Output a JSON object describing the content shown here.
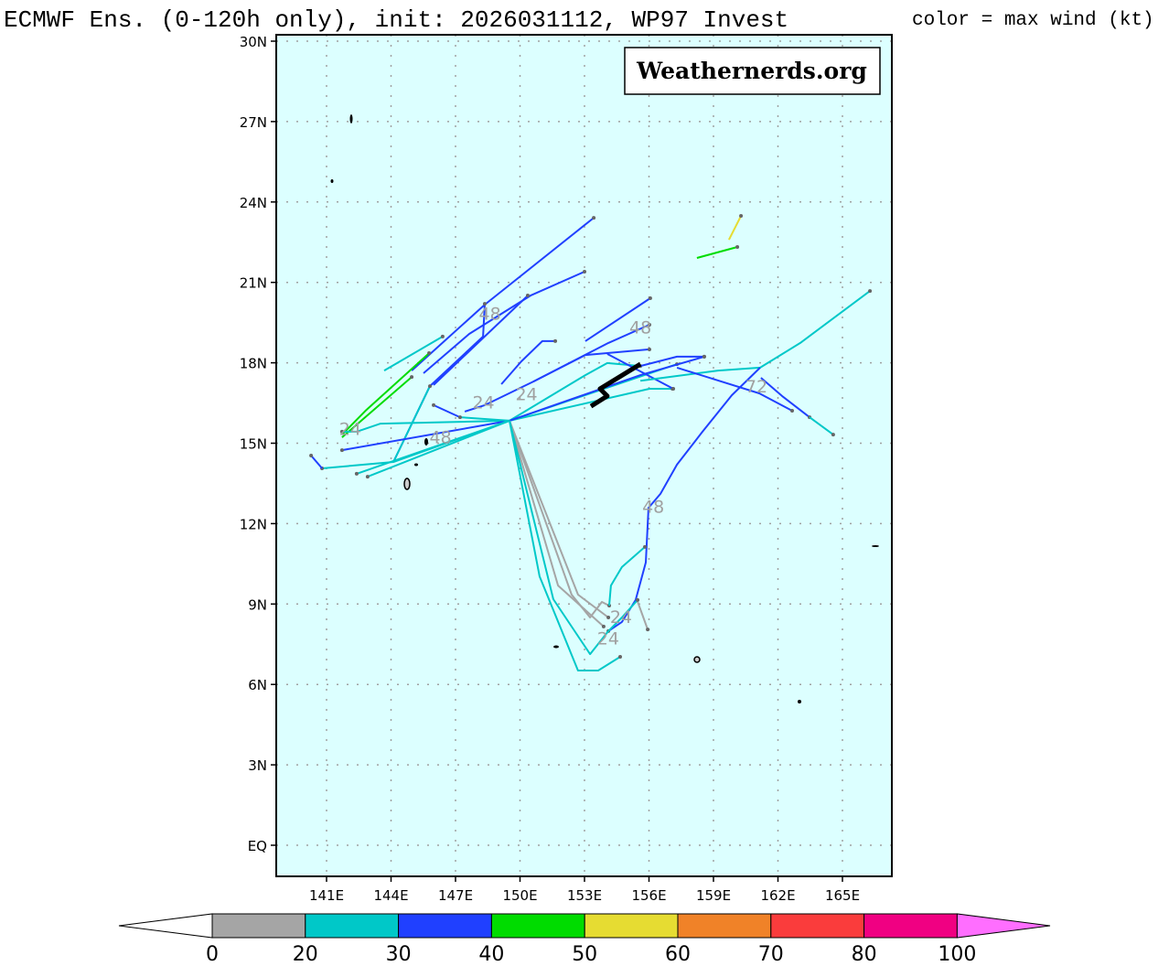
{
  "header": {
    "title": "ECMWF Ens. (0-120h only), init: 2026031112, WP97 Invest",
    "legend_note": "color = max wind (kt)"
  },
  "watermark": "Weathernerds.org",
  "colors": {
    "ocean": "#dcffff",
    "grid": "#a0a0a0"
  },
  "chart_data": {
    "type": "map-tracks",
    "lon_range": [
      139.2,
      167.8
    ],
    "lat_range": [
      -1.2,
      30.2
    ],
    "lon_ticks": [
      {
        "v": 141,
        "label": "141E"
      },
      {
        "v": 144,
        "label": "144E"
      },
      {
        "v": 147,
        "label": "147E"
      },
      {
        "v": 150,
        "label": "150E"
      },
      {
        "v": 153,
        "label": "153E"
      },
      {
        "v": 156,
        "label": "156E"
      },
      {
        "v": 159,
        "label": "159E"
      },
      {
        "v": 162,
        "label": "162E"
      },
      {
        "v": 165,
        "label": "165E"
      }
    ],
    "lat_ticks": [
      {
        "v": 30,
        "label": "30N"
      },
      {
        "v": 27,
        "label": "27N"
      },
      {
        "v": 24,
        "label": "24N"
      },
      {
        "v": 21,
        "label": "21N"
      },
      {
        "v": 18,
        "label": "18N"
      },
      {
        "v": 15,
        "label": "15N"
      },
      {
        "v": 12,
        "label": "12N"
      },
      {
        "v": 9,
        "label": "9N"
      },
      {
        "v": 6,
        "label": "6N"
      },
      {
        "v": 3,
        "label": "3N"
      },
      {
        "v": 0,
        "label": "EQ"
      }
    ],
    "colorbar": {
      "bins": [
        {
          "from": 0,
          "to": 20,
          "color": "#a5a5a5"
        },
        {
          "from": 20,
          "to": 30,
          "color": "#00c8c8"
        },
        {
          "from": 30,
          "to": 40,
          "color": "#2040ff"
        },
        {
          "from": 40,
          "to": 50,
          "color": "#00dc00"
        },
        {
          "from": 50,
          "to": 60,
          "color": "#e6dc32"
        },
        {
          "from": 60,
          "to": 70,
          "color": "#f08228"
        },
        {
          "from": 70,
          "to": 80,
          "color": "#fa3c3c"
        },
        {
          "from": 80,
          "to": 100,
          "color": "#f00082"
        }
      ],
      "over_color": "#ff6eff",
      "labels": [
        "0",
        "20",
        "30",
        "40",
        "50",
        "60",
        "70",
        "80",
        "100"
      ]
    },
    "tracks": [
      {
        "c": "blue",
        "pts": [
          [
            144.96,
            17.71
          ],
          [
            148.36,
            20.17
          ],
          [
            153.43,
            23.41
          ]
        ]
      },
      {
        "c": "blue",
        "pts": [
          [
            145.51,
            17.61
          ],
          [
            147.64,
            19.08
          ],
          [
            150.49,
            20.51
          ],
          [
            153.0,
            21.4
          ]
        ]
      },
      {
        "c": "blue",
        "pts": [
          [
            145.98,
            17.17
          ],
          [
            150.36,
            20.51
          ]
        ]
      },
      {
        "c": "blue",
        "pts": [
          [
            144.11,
            14.3
          ],
          [
            145.81,
            17.13
          ],
          [
            148.28,
            18.98
          ],
          [
            148.36,
            20.2
          ]
        ]
      },
      {
        "c": "cyan",
        "pts": [
          [
            144.11,
            14.3
          ],
          [
            145.81,
            17.13
          ]
        ]
      },
      {
        "c": "green",
        "pts": [
          [
            141.72,
            15.32
          ],
          [
            142.8,
            16.2
          ],
          [
            145.77,
            18.36
          ]
        ]
      },
      {
        "c": "green",
        "pts": [
          [
            141.72,
            15.22
          ],
          [
            144.96,
            17.47
          ]
        ]
      },
      {
        "c": "cyan",
        "pts": [
          [
            143.68,
            17.71
          ],
          [
            146.4,
            18.98
          ]
        ]
      },
      {
        "c": "cyan",
        "pts": [
          [
            149.51,
            15.84
          ],
          [
            143.51,
            15.73
          ],
          [
            142.4,
            15.43
          ],
          [
            141.72,
            15.43
          ]
        ]
      },
      {
        "c": "blue",
        "pts": [
          [
            149.51,
            15.84
          ],
          [
            141.72,
            14.74
          ]
        ]
      },
      {
        "c": "cyan",
        "pts": [
          [
            149.51,
            15.84
          ],
          [
            144.11,
            14.3
          ],
          [
            140.79,
            14.06
          ]
        ]
      },
      {
        "c": "blue",
        "pts": [
          [
            140.79,
            14.06
          ],
          [
            140.28,
            14.54
          ]
        ]
      },
      {
        "c": "cyan",
        "pts": [
          [
            149.51,
            15.84
          ],
          [
            142.4,
            13.86
          ]
        ]
      },
      {
        "c": "cyan",
        "pts": [
          [
            149.51,
            15.84
          ],
          [
            142.91,
            13.75
          ]
        ]
      },
      {
        "c": "blue",
        "pts": [
          [
            147.21,
            15.97
          ],
          [
            145.98,
            16.42
          ]
        ]
      },
      {
        "c": "cyan",
        "pts": [
          [
            149.51,
            15.84
          ],
          [
            147.21,
            15.97
          ]
        ]
      },
      {
        "c": "blue",
        "pts": [
          [
            147.43,
            16.18
          ],
          [
            148.36,
            16.42
          ],
          [
            150.62,
            17.3
          ],
          [
            153.04,
            18.29
          ],
          [
            156.02,
            18.5
          ]
        ]
      },
      {
        "c": "blue",
        "pts": [
          [
            150.62,
            17.3
          ],
          [
            154.11,
            18.74
          ],
          [
            156.02,
            19.42
          ]
        ]
      },
      {
        "c": "blue",
        "pts": [
          [
            153.04,
            18.81
          ],
          [
            156.06,
            20.41
          ]
        ]
      },
      {
        "c": "blue",
        "pts": [
          [
            149.13,
            17.2
          ],
          [
            150.06,
            18.05
          ],
          [
            151.04,
            18.81
          ],
          [
            151.64,
            18.81
          ]
        ]
      },
      {
        "c": "cyan",
        "pts": [
          [
            149.51,
            15.84
          ],
          [
            153.04,
            17.54
          ],
          [
            154.06,
            17.99
          ],
          [
            155.6,
            17.88
          ]
        ]
      },
      {
        "c": "cyan",
        "pts": [
          [
            149.51,
            15.84
          ],
          [
            157.3,
            17.95
          ]
        ]
      },
      {
        "c": "cyan",
        "pts": [
          [
            149.51,
            15.84
          ],
          [
            156.02,
            17.03
          ],
          [
            157.09,
            17.03
          ]
        ]
      },
      {
        "c": "blue",
        "pts": [
          [
            149.51,
            15.84
          ],
          [
            155.6,
            17.54
          ],
          [
            158.57,
            18.23
          ]
        ]
      },
      {
        "c": "blue",
        "pts": [
          [
            154.06,
            18.33
          ],
          [
            157.13,
            17.03
          ]
        ]
      },
      {
        "c": "blue",
        "pts": [
          [
            155.6,
            17.88
          ],
          [
            157.3,
            18.23
          ],
          [
            158.57,
            18.23
          ]
        ]
      },
      {
        "c": "green",
        "pts": [
          [
            158.23,
            21.91
          ],
          [
            160.11,
            22.32
          ]
        ]
      },
      {
        "c": "yellow",
        "pts": [
          [
            159.72,
            22.59
          ],
          [
            160.28,
            23.48
          ]
        ]
      },
      {
        "c": "cyan",
        "pts": [
          [
            155.6,
            17.33
          ],
          [
            159.21,
            17.71
          ],
          [
            161.17,
            17.82
          ],
          [
            163.04,
            18.74
          ],
          [
            166.28,
            20.68
          ]
        ]
      },
      {
        "c": "blue",
        "pts": [
          [
            157.3,
            17.82
          ],
          [
            161.13,
            16.86
          ],
          [
            162.66,
            16.21
          ]
        ]
      },
      {
        "c": "blue",
        "pts": [
          [
            161.21,
            17.44
          ],
          [
            162.19,
            16.76
          ],
          [
            163.47,
            15.97
          ]
        ]
      },
      {
        "c": "cyan",
        "pts": [
          [
            163.47,
            15.97
          ],
          [
            164.57,
            15.32
          ]
        ]
      },
      {
        "c": "blue",
        "pts": [
          [
            161.17,
            17.82
          ],
          [
            159.85,
            16.79
          ],
          [
            158.49,
            15.43
          ],
          [
            157.3,
            14.2
          ],
          [
            156.53,
            13.11
          ],
          [
            155.98,
            12.59
          ],
          [
            155.85,
            10.55
          ],
          [
            155.38,
            9.15
          ],
          [
            154.74,
            8.33
          ],
          [
            154.11,
            7.99
          ]
        ]
      },
      {
        "c": "gray",
        "pts": [
          [
            149.51,
            15.84
          ],
          [
            152.4,
            9.35
          ],
          [
            153.26,
            8.5
          ],
          [
            153.81,
            9.08
          ],
          [
            154.15,
            8.94
          ]
        ]
      },
      {
        "c": "gray",
        "pts": [
          [
            149.51,
            15.84
          ],
          [
            151.77,
            9.69
          ],
          [
            153.89,
            8.16
          ]
        ]
      },
      {
        "c": "gray",
        "pts": [
          [
            149.51,
            15.84
          ],
          [
            152.7,
            9.35
          ],
          [
            154.11,
            8.5
          ]
        ]
      },
      {
        "c": "gray",
        "pts": [
          [
            155.43,
            9.18
          ],
          [
            155.94,
            8.05
          ]
        ]
      },
      {
        "c": "cyan",
        "pts": [
          [
            149.51,
            15.84
          ],
          [
            151.55,
            9.18
          ],
          [
            153.26,
            7.13
          ],
          [
            154.11,
            7.99
          ],
          [
            154.74,
            8.5
          ],
          [
            155.47,
            9.15
          ]
        ]
      },
      {
        "c": "cyan",
        "pts": [
          [
            149.51,
            15.84
          ],
          [
            150.91,
            10.03
          ],
          [
            152.7,
            6.52
          ],
          [
            153.64,
            6.52
          ],
          [
            154.66,
            7.03
          ]
        ]
      },
      {
        "c": "cyan",
        "pts": [
          [
            154.15,
            8.94
          ],
          [
            154.23,
            9.69
          ],
          [
            154.74,
            10.38
          ],
          [
            155.81,
            11.13
          ]
        ]
      }
    ],
    "mean_track": [
      [
        155.6,
        17.95
      ],
      [
        153.72,
        17.03
      ],
      [
        154.06,
        16.76
      ],
      [
        153.3,
        16.38
      ]
    ],
    "time_labels": [
      {
        "text": "48",
        "lon": 148.6,
        "lat": 19.6
      },
      {
        "text": "48",
        "lon": 155.6,
        "lat": 19.1
      },
      {
        "text": "24",
        "lon": 148.3,
        "lat": 16.3
      },
      {
        "text": "24",
        "lon": 150.3,
        "lat": 16.6
      },
      {
        "text": "24",
        "lon": 142.1,
        "lat": 15.3
      },
      {
        "text": "48",
        "lon": 146.3,
        "lat": 15.0
      },
      {
        "text": "72",
        "lon": 161.0,
        "lat": 16.9
      },
      {
        "text": "48",
        "lon": 156.2,
        "lat": 12.4
      },
      {
        "text": "24",
        "lon": 154.7,
        "lat": 8.3
      },
      {
        "text": "24",
        "lon": 154.1,
        "lat": 7.5
      }
    ]
  }
}
